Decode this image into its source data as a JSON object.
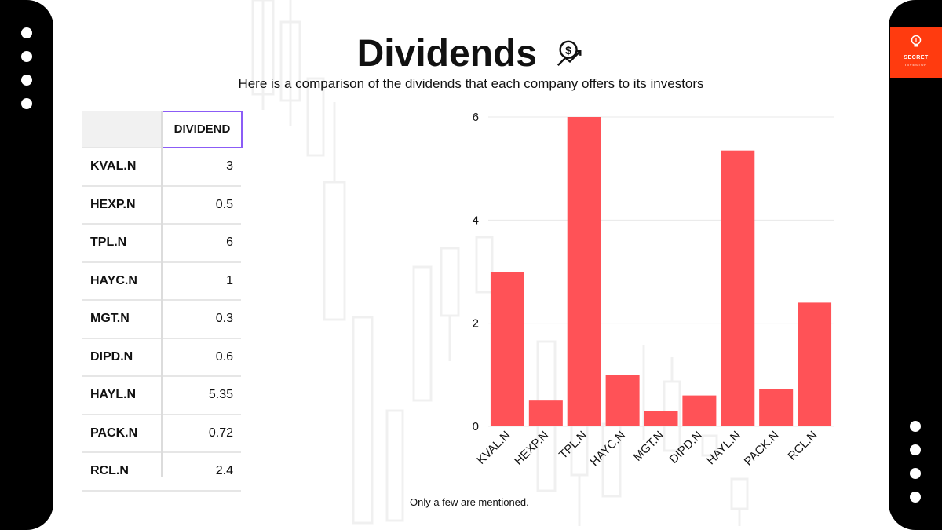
{
  "title": "Dividends",
  "subtitle": "Here is a comparison of the dividends that each company offers to its investors",
  "table": {
    "header": "DIVIDEND",
    "rows": [
      {
        "label": "KVAL.N",
        "value": "3"
      },
      {
        "label": "HEXP.N",
        "value": "0.5"
      },
      {
        "label": "TPL.N",
        "value": "6"
      },
      {
        "label": "HAYC.N",
        "value": "1"
      },
      {
        "label": "MGT.N",
        "value": "0.3"
      },
      {
        "label": "DIPD.N",
        "value": "0.6"
      },
      {
        "label": "HAYL.N",
        "value": "5.35"
      },
      {
        "label": "PACK.N",
        "value": "0.72"
      },
      {
        "label": "RCL.N",
        "value": "2.4"
      }
    ]
  },
  "logo": {
    "text": "SECRET",
    "subtext": "INVESTOR"
  },
  "note": "Only a few are mentioned.",
  "colors": {
    "bar": "#ff5257",
    "accent": "#8b5cf6",
    "brand": "#ff3b0f",
    "sidebar": "#000000"
  },
  "chart_data": {
    "type": "bar",
    "categories": [
      "KVAL.N",
      "HEXP.N",
      "TPL.N",
      "HAYC.N",
      "MGT.N",
      "DIPD.N",
      "HAYL.N",
      "PACK.N",
      "RCL.N"
    ],
    "values": [
      3,
      0.5,
      6,
      1,
      0.3,
      0.6,
      5.35,
      0.72,
      2.4
    ],
    "title": "",
    "xlabel": "",
    "ylabel": "",
    "ylim": [
      0,
      6
    ],
    "yticks": [
      0,
      2,
      4,
      6
    ],
    "grid": true,
    "legend": "none"
  }
}
